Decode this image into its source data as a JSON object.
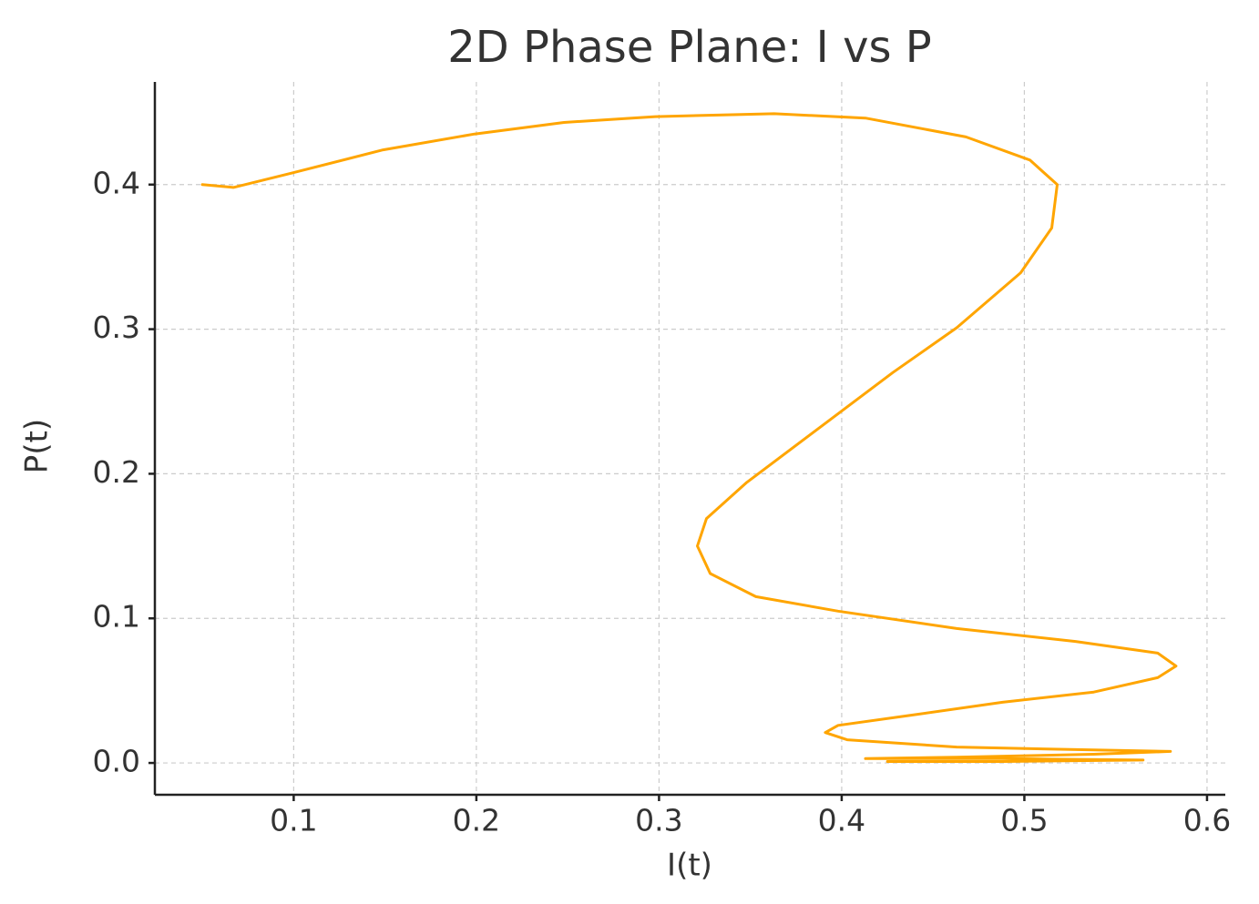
{
  "chart_data": {
    "type": "line",
    "title": "2D Phase Plane: I vs P",
    "x_label": "I(t)",
    "y_label": "P(t)",
    "grid": true,
    "xlim": [
      0.024,
      0.61
    ],
    "ylim": [
      -0.022,
      0.471
    ],
    "xticks": [
      0.1,
      0.2,
      0.3,
      0.4,
      0.5,
      0.6
    ],
    "yticks": [
      {
        "value": 0,
        "label": "0.0"
      },
      0.1,
      0.2,
      0.3,
      0.4
    ],
    "series": [
      {
        "name": "I vs P",
        "color": "#FFA500",
        "x": [
          0.05,
          0.067,
          0.099,
          0.149,
          0.199,
          0.248,
          0.298,
          0.363,
          0.413,
          0.468,
          0.503,
          0.518,
          0.515,
          0.498,
          0.463,
          0.428,
          0.388,
          0.348,
          0.326,
          0.321,
          0.328,
          0.353,
          0.398,
          0.463,
          0.528,
          0.573,
          0.583,
          0.573,
          0.538,
          0.488,
          0.438,
          0.398,
          0.391,
          0.403,
          0.463,
          0.538,
          0.58,
          0.538,
          0.463,
          0.413,
          0.488,
          0.565,
          0.488,
          0.425
        ],
        "values": [
          0.4,
          0.398,
          0.408,
          0.424,
          0.435,
          0.443,
          0.447,
          0.449,
          0.446,
          0.433,
          0.417,
          0.4,
          0.37,
          0.339,
          0.301,
          0.27,
          0.232,
          0.194,
          0.169,
          0.15,
          0.131,
          0.115,
          0.105,
          0.093,
          0.084,
          0.076,
          0.067,
          0.059,
          0.049,
          0.042,
          0.033,
          0.026,
          0.021,
          0.016,
          0.011,
          0.009,
          0.008,
          0.006,
          0.004,
          0.003,
          0.003,
          0.002,
          0.001,
          0.001
        ]
      }
    ]
  }
}
